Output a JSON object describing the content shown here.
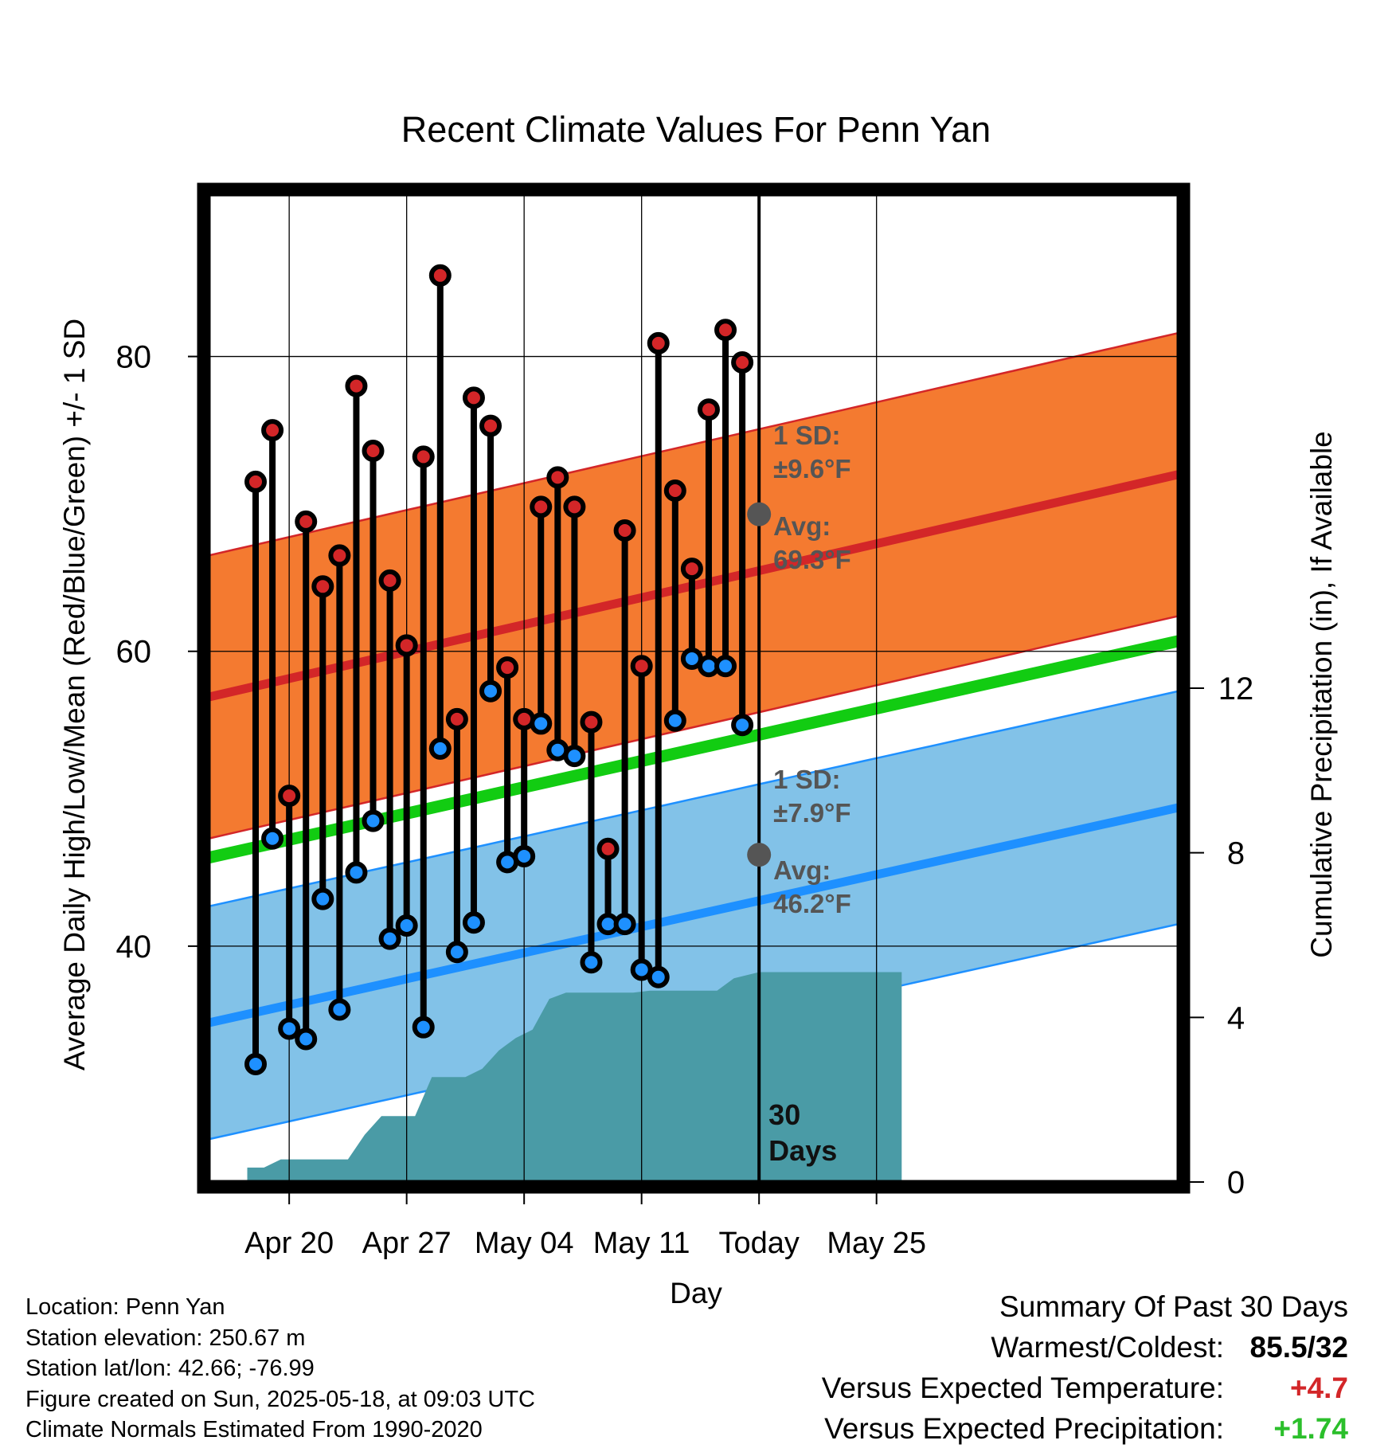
{
  "title": "Recent Climate Values For Penn Yan",
  "chart_data": {
    "type": "line",
    "title": "Recent Climate Values For Penn Yan",
    "xlabel": "Day",
    "ylabel_left": "Average Daily High/Low/Mean (Red/Blue/Green) +/- 1 SD",
    "ylabel_right": "Cumulative Precipitation (in), If Available",
    "xlim": [
      -2.8,
      55
    ],
    "ylim_left": [
      24,
      91
    ],
    "ylim_right": [
      0,
      24
    ],
    "x_ticks": [
      {
        "x": 2,
        "label": "Apr 20"
      },
      {
        "x": 9,
        "label": "Apr 27"
      },
      {
        "x": 16,
        "label": "May 04"
      },
      {
        "x": 23,
        "label": "May 11"
      },
      {
        "x": 30,
        "label": "Today"
      },
      {
        "x": 37,
        "label": "May 25"
      }
    ],
    "y_ticks_left": [
      40,
      60,
      80
    ],
    "y_ticks_right": [
      0,
      4,
      8,
      12
    ],
    "grid": true,
    "daily_high": [
      71.5,
      75.0,
      50.2,
      68.8,
      64.4,
      66.5,
      78.0,
      73.6,
      64.8,
      60.4,
      73.2,
      85.5,
      55.4,
      77.2,
      75.3,
      58.9,
      55.4,
      69.8,
      71.8,
      69.8,
      55.2,
      46.6,
      68.2,
      59.0,
      80.9,
      70.9,
      65.6,
      76.4,
      81.8,
      79.6
    ],
    "daily_low": [
      32.0,
      47.3,
      34.4,
      33.7,
      43.2,
      35.7,
      45.0,
      48.5,
      40.5,
      41.4,
      34.5,
      53.4,
      39.6,
      41.6,
      57.3,
      45.7,
      46.1,
      55.1,
      53.3,
      52.9,
      38.9,
      41.5,
      41.5,
      38.4,
      37.9,
      55.3,
      59.5,
      59.0,
      59.0,
      55.0
    ],
    "normal_high": {
      "avg_start": 56.9,
      "avg_end": 72.0,
      "sd": 9.6,
      "annot_sd": "1 SD:",
      "annot_sd_value": "±9.6°F",
      "annot_avg": "Avg:",
      "annot_avg_value": "69.3°F",
      "today_avg": 69.3,
      "color_band": "#f47a30",
      "color_line": "#d32628"
    },
    "normal_low": {
      "avg_start": 34.8,
      "avg_end": 49.4,
      "sd": 7.9,
      "annot_sd": "1 SD:",
      "annot_sd_value": "±7.9°F",
      "annot_avg": "Avg:",
      "annot_avg_value": "46.2°F",
      "today_avg": 46.2,
      "color_band": "#82c2e8",
      "color_line": "#1e90ff"
    },
    "normal_mean": {
      "avg_start": 46.0,
      "avg_end": 60.7,
      "color_line": "#12cc12"
    },
    "cumulative_precip": {
      "x": [
        -1.5,
        -0.5,
        -0.5,
        0.5,
        1.5,
        2.5,
        3.5,
        4.5,
        5.5,
        6.5,
        7.5,
        8.5,
        9.5,
        10.5,
        11.5,
        12.5,
        13.5,
        14.5,
        15.5,
        16.5,
        17.5,
        18.5,
        19.5,
        20.5,
        21.5,
        22.5,
        23.5,
        24.5,
        25.5,
        26.5,
        27.5,
        28.5,
        30.0,
        31.5,
        32.5,
        33.5,
        34.5,
        35.5,
        36.5,
        37.5,
        38.5
      ],
      "y": [
        0,
        0,
        0.35,
        0.35,
        0.55,
        0.55,
        0.55,
        0.55,
        0.55,
        1.15,
        1.6,
        1.6,
        1.6,
        2.55,
        2.55,
        2.55,
        2.75,
        3.2,
        3.5,
        3.7,
        4.45,
        4.6,
        4.6,
        4.6,
        4.6,
        4.6,
        4.65,
        4.65,
        4.65,
        4.65,
        4.65,
        4.95,
        5.1,
        5.1,
        5.1,
        5.1,
        5.1,
        5.1,
        5.1,
        5.1,
        5.1
      ],
      "color": "#4a9ba6"
    },
    "today_marker": {
      "x": 30,
      "label_line1": "30",
      "label_line2": "Days"
    }
  },
  "footer": {
    "location": "Location: Penn Yan",
    "elevation": "Station elevation: 250.67 m",
    "latlon": "Station lat/lon: 42.66; -76.99",
    "created": "Figure created on Sun, 2025-05-18, at 09:03 UTC",
    "normals": "Climate Normals Estimated From 1990-2020"
  },
  "summary": {
    "heading": "Summary Of Past 30 Days",
    "warmest_label": "Warmest/Coldest:",
    "warmest_value": "85.5/32",
    "temp_label": "Versus Expected Temperature:",
    "temp_value": "+4.7",
    "temp_color": "#d32628",
    "precip_label": "Versus Expected Precipitation:",
    "precip_value": "+1.74",
    "precip_color": "#2bbf2b"
  }
}
